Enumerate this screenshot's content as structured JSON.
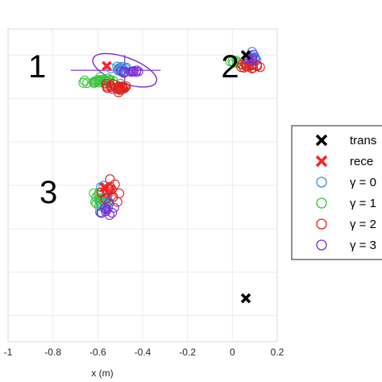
{
  "chart_data": {
    "type": "scatter",
    "xlabel": "x (m)",
    "xlim": [
      -1,
      0.2
    ],
    "ylim": [
      -5.6,
      1.6
    ],
    "xticks": [
      "-1",
      "-0.8",
      "-0.6",
      "-0.4",
      "-0.2",
      "0",
      "0.2"
    ],
    "grid": true,
    "legend_position": "right",
    "group_labels": [
      {
        "text": "1",
        "x": -0.87,
        "y": 0.75
      },
      {
        "text": "2",
        "x": -0.01,
        "y": 0.75
      },
      {
        "text": "3",
        "x": -0.82,
        "y": -2.15
      }
    ],
    "legend": [
      {
        "label": "trans",
        "marker": "x",
        "color": "#000000"
      },
      {
        "label": "rece",
        "marker": "x",
        "color": "#ff2020"
      },
      {
        "label": "γ = 0",
        "marker": "o",
        "color": "#3a8fd6"
      },
      {
        "label": "γ = 1",
        "marker": "o",
        "color": "#3cc43c"
      },
      {
        "label": "γ = 2",
        "marker": "o",
        "color": "#e02020"
      },
      {
        "label": "γ = 3",
        "marker": "o",
        "color": "#7a2ad9"
      }
    ],
    "series": [
      {
        "name": "trans",
        "color": "#000000",
        "marker": "x",
        "points": [
          [
            0.06,
            1.0
          ],
          [
            0.06,
            -4.6
          ]
        ]
      },
      {
        "name": "rece",
        "color": "#ff2020",
        "marker": "x",
        "points": [
          [
            -0.56,
            0.75
          ],
          [
            -0.57,
            -2.05
          ]
        ]
      },
      {
        "name": "γ = 0",
        "color": "#3a8fd6",
        "marker": "o",
        "clusters": [
          {
            "cx": -0.5,
            "cy": 0.68,
            "sx": 0.03,
            "sy": 0.05,
            "n": 12
          },
          {
            "cx": 0.09,
            "cy": 0.93,
            "sx": 0.015,
            "sy": 0.12,
            "n": 10
          },
          {
            "cx": -0.57,
            "cy": -2.35,
            "sx": 0.02,
            "sy": 0.2,
            "n": 14
          }
        ]
      },
      {
        "name": "γ = 1",
        "color": "#3cc43c",
        "marker": "o",
        "clusters": [
          {
            "cx": -0.6,
            "cy": 0.4,
            "sx": 0.07,
            "sy": 0.05,
            "n": 26
          },
          {
            "cx": 0.02,
            "cy": 0.85,
            "sx": 0.02,
            "sy": 0.04,
            "n": 6
          },
          {
            "cx": -0.6,
            "cy": -2.3,
            "sx": 0.02,
            "sy": 0.12,
            "n": 10
          }
        ]
      },
      {
        "name": "γ = 2",
        "color": "#e02020",
        "marker": "o",
        "clusters": [
          {
            "cx": -0.51,
            "cy": 0.25,
            "sx": 0.06,
            "sy": 0.06,
            "n": 22
          },
          {
            "cx": 0.08,
            "cy": 0.75,
            "sx": 0.03,
            "sy": 0.06,
            "n": 16
          },
          {
            "cx": -0.54,
            "cy": -2.15,
            "sx": 0.03,
            "sy": 0.15,
            "n": 14
          }
        ]
      },
      {
        "name": "γ = 3",
        "color": "#7a2ad9",
        "marker": "o",
        "clusters": [
          {
            "cx": -0.45,
            "cy": 0.62,
            "sx": 0.04,
            "sy": 0.05,
            "n": 10
          },
          {
            "cx": 0.08,
            "cy": 0.92,
            "sx": 0.02,
            "sy": 0.06,
            "n": 5
          },
          {
            "cx": -0.56,
            "cy": -2.55,
            "sx": 0.03,
            "sy": 0.1,
            "n": 8
          }
        ]
      }
    ],
    "ellipse": {
      "color": "#7a2ad9",
      "cx": -0.48,
      "cy": 0.65,
      "rx": 0.15,
      "ry": 0.27,
      "angle_deg": -20
    },
    "crosshair": {
      "color": "#7a2ad9",
      "x": -0.48,
      "y": 0.65,
      "x_from": -0.72,
      "x_to": -0.32,
      "y_from": 0.3,
      "y_to": 1.0
    }
  }
}
